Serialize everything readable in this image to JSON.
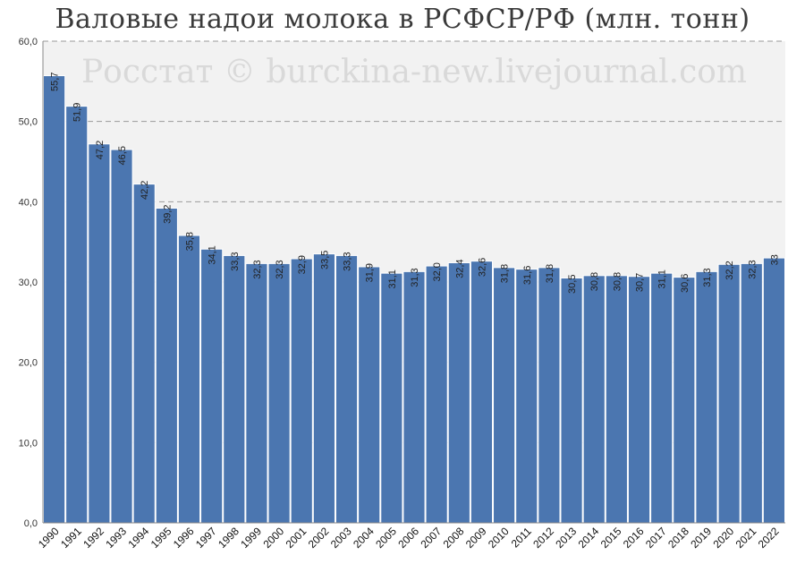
{
  "chart_data": {
    "type": "bar",
    "title": "Валовые надои молока в РСФСР/РФ (млн. тонн)",
    "watermark": "Росстат © burckina-new.livejournal.com",
    "categories": [
      "1990",
      "1991",
      "1992",
      "1993",
      "1994",
      "1995",
      "1996",
      "1997",
      "1998",
      "1999",
      "2000",
      "2001",
      "2002",
      "2003",
      "2004",
      "2005",
      "2006",
      "2007",
      "2008",
      "2009",
      "2010",
      "2011",
      "2012",
      "2013",
      "2014",
      "2015",
      "2016",
      "2017",
      "2018",
      "2019",
      "2020",
      "2021",
      "2022"
    ],
    "values": [
      55.7,
      51.9,
      47.2,
      46.5,
      42.2,
      39.2,
      35.8,
      34.1,
      33.3,
      32.3,
      32.3,
      32.9,
      33.5,
      33.3,
      31.9,
      31.1,
      31.3,
      32.0,
      32.4,
      32.6,
      31.8,
      31.6,
      31.8,
      30.5,
      30.8,
      30.8,
      30.7,
      31.1,
      30.6,
      31.3,
      32.2,
      32.3,
      33
    ],
    "data_labels": [
      "55,7",
      "51,9",
      "47,2",
      "46,5",
      "42,2",
      "39,2",
      "35,8",
      "34,1",
      "33,3",
      "32,3",
      "32,3",
      "32,9",
      "33,5",
      "33,3",
      "31,9",
      "31,1",
      "31,3",
      "32,0",
      "32,4",
      "32,6",
      "31,8",
      "31,6",
      "31,8",
      "30,5",
      "30,8",
      "30,8",
      "30,7",
      "31,1",
      "30,6",
      "31,3",
      "32,2",
      "32,3",
      "33"
    ],
    "yticks": [
      "0,0",
      "10,0",
      "20,0",
      "30,0",
      "40,0",
      "50,0",
      "60,0"
    ],
    "ylim": [
      0,
      60
    ],
    "xlabel": "",
    "ylabel": "",
    "grid": true,
    "colors": {
      "bar": "#4b76b0",
      "bar_edge": "#ffffff",
      "plot_bg": "#f2f2f2",
      "grid": "#9a9a9a",
      "watermark": "#d9d9d9"
    }
  }
}
